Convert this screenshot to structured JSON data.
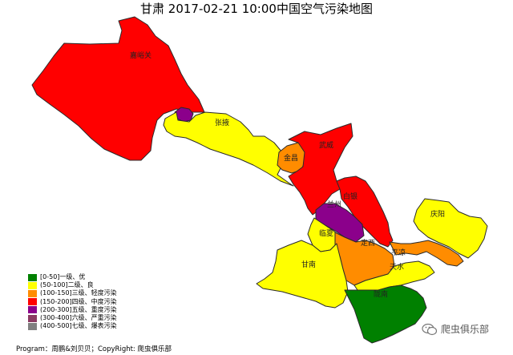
{
  "title": "甘肃 2017-02-21 10:00中国空气污染地图",
  "colors": {
    "excellent": "#008000",
    "good": "#ffff00",
    "light": "#ff8c00",
    "moderate": "#ff0000",
    "heavy": "#8b008b",
    "severe": "#8b3a62",
    "extreme": "#808080",
    "border": "#2a2a2a"
  },
  "legend": [
    {
      "label": "[0-50]一级、优",
      "color": "#008000"
    },
    {
      "label": "(50-100]二级、良",
      "color": "#ffff00"
    },
    {
      "label": "(100-150]三级、轻度污染",
      "color": "#ff8c00"
    },
    {
      "label": "(150-200]四级、中度污染",
      "color": "#ff0000"
    },
    {
      "label": "(200-300]五级、重度污染",
      "color": "#8b008b"
    },
    {
      "label": "(300-400]六级、严重污染",
      "color": "#8b3a62"
    },
    {
      "label": "(400-500]七级、爆表污染",
      "color": "#808080"
    }
  ],
  "regions": [
    {
      "id": "jiayuguan",
      "name": "嘉峪关",
      "level": "moderate"
    },
    {
      "id": "jiuquan",
      "name": "",
      "level": "heavy"
    },
    {
      "id": "zhangye",
      "name": "张掖",
      "level": "good"
    },
    {
      "id": "jinchang",
      "name": "金昌",
      "level": "light"
    },
    {
      "id": "wuwei",
      "name": "武威",
      "level": "moderate"
    },
    {
      "id": "baiyin",
      "name": "白银",
      "level": "moderate"
    },
    {
      "id": "lanzhou",
      "name": "兰州",
      "level": "heavy"
    },
    {
      "id": "qingyang",
      "name": "庆阳",
      "level": "good"
    },
    {
      "id": "linxia",
      "name": "临夏",
      "level": "good"
    },
    {
      "id": "dingxi",
      "name": "定西",
      "level": "light"
    },
    {
      "id": "pingliang",
      "name": "平凉",
      "level": "light"
    },
    {
      "id": "gannan",
      "name": "甘南",
      "level": "good"
    },
    {
      "id": "tianshui",
      "name": "天水",
      "level": "good"
    },
    {
      "id": "longnan",
      "name": "陇南",
      "level": "excellent"
    }
  ],
  "footer": "Program：周鹏&刘贝贝；CopyRight: 爬虫俱乐部",
  "watermark": "爬虫俱乐部"
}
